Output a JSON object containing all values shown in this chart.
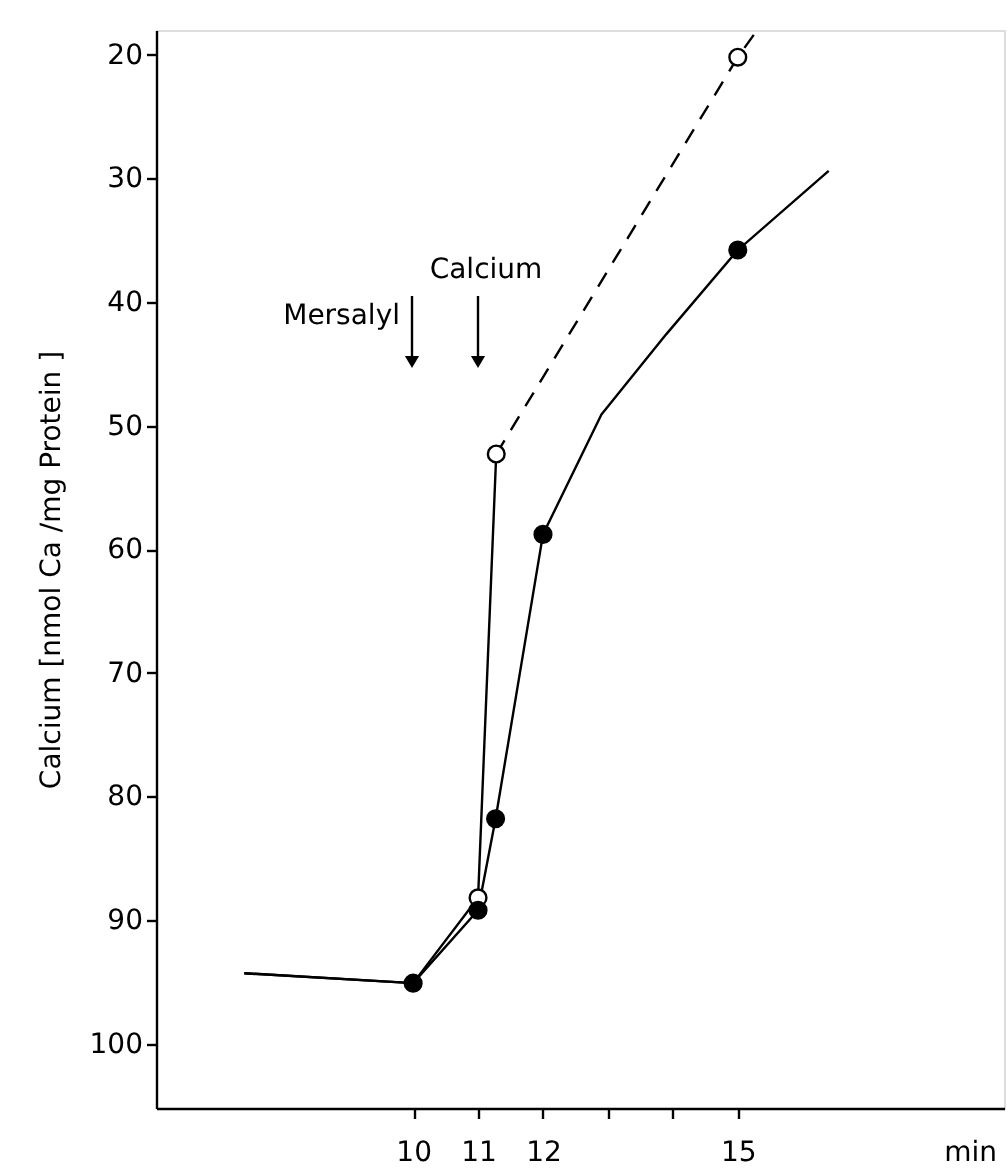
{
  "chart_data": {
    "type": "line",
    "xlabel": "min",
    "ylabel": "Calcium  [nmol Ca /mg Protein ]",
    "xlim": [
      6.04,
      19.1
    ],
    "ylim": [
      105.2,
      18
    ],
    "xticks": [
      10,
      11,
      12,
      {
        "value": 13,
        "label": null
      },
      {
        "value": 14,
        "label": null
      },
      15
    ],
    "yticks": [
      20,
      30,
      40,
      50,
      60,
      70,
      80,
      90,
      100
    ],
    "grid": false,
    "annotations": [
      "Mersalyl",
      "Calcium"
    ],
    "series": [
      {
        "color": "#000000",
        "marker": "none",
        "line_style": "solid",
        "x": [
          7.4,
          10,
          11,
          11.28
        ],
        "values": [
          94.3,
          95.1,
          88.2,
          52.3
        ]
      },
      {
        "color": "#000000",
        "marker": "none",
        "line_style": "dashed",
        "x": [
          11.28,
          15,
          15.3
        ],
        "values": [
          52.3,
          20.2,
          18
        ]
      },
      {
        "color": "#000000",
        "marker": "none",
        "line_style": "solid",
        "x": [
          7.4,
          10,
          11,
          11.27,
          12,
          12.9,
          13.9,
          15,
          16.4
        ],
        "values": [
          94.3,
          95.1,
          89.2,
          81.8,
          58.8,
          49.1,
          42.6,
          35.8,
          29.4
        ]
      },
      {
        "type": "scatter",
        "color": "#ffffff",
        "marker": "circle",
        "x": [
          11,
          11.28,
          15
        ],
        "values": [
          88.2,
          52.3,
          20.2
        ]
      },
      {
        "type": "scatter",
        "color": "#000000",
        "marker": "circle",
        "x": [
          10,
          11,
          11.27,
          12,
          15
        ],
        "values": [
          95.1,
          89.2,
          81.8,
          58.8,
          35.8
        ]
      }
    ]
  }
}
